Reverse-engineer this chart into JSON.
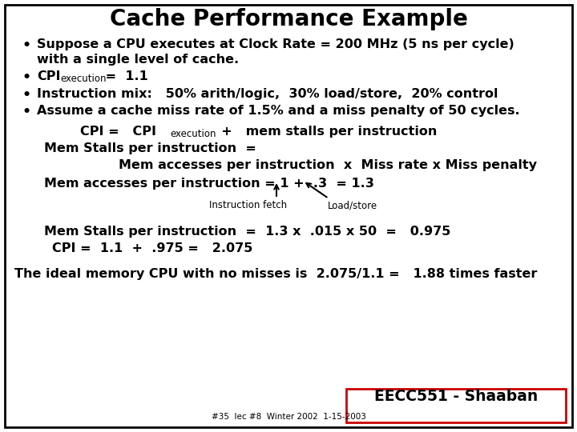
{
  "title": "Cache Performance Example",
  "background_color": "#ffffff",
  "border_color": "#000000",
  "title_fontsize": 20,
  "body_fontsize": 11.5,
  "small_fontsize": 8.5,
  "footer_box": "EECC551 - Shaaban",
  "footer_small": "#35  lec #8  Winter 2002  1-15-2003",
  "footer_box_color": "#cc0000"
}
